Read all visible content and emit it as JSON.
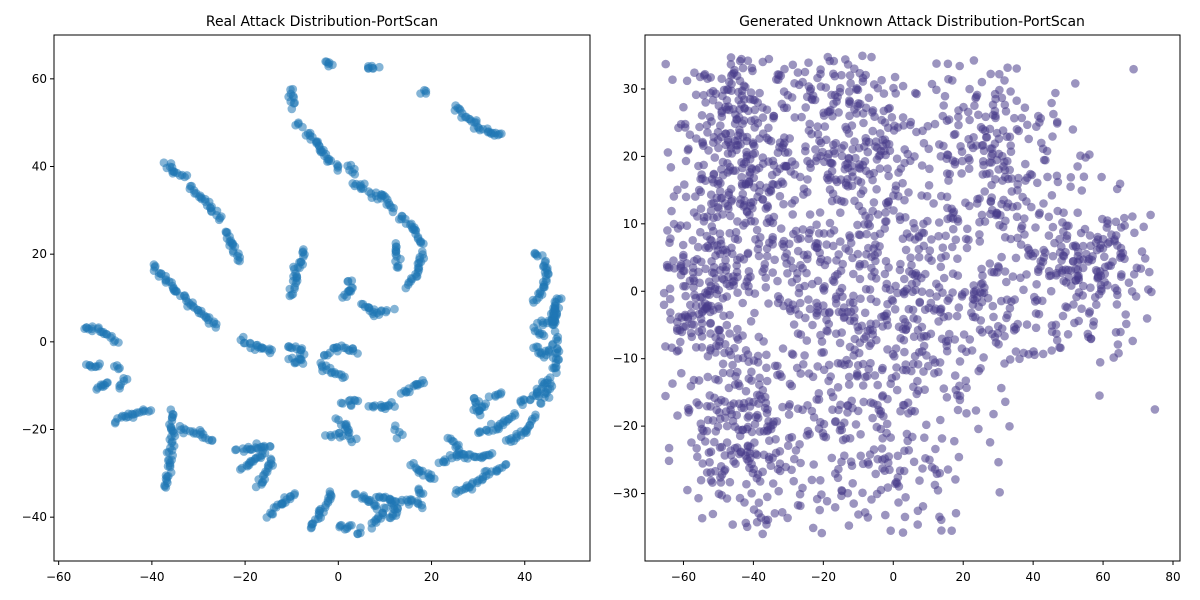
{
  "chart_data": [
    {
      "type": "scatter",
      "title": "Real Attack Distribution-PortScan",
      "xlabel": "",
      "ylabel": "",
      "xlim": [
        -61,
        54
      ],
      "ylim": [
        -50,
        70
      ],
      "xticks": [
        -60,
        -40,
        -20,
        0,
        20,
        40
      ],
      "yticks": [
        -40,
        -20,
        0,
        20,
        40,
        60
      ],
      "color": "#1f77b4",
      "alpha": 0.55,
      "point_style": "filled circle",
      "grid": false,
      "strokes": [
        [
          [
            -55,
            3.5
          ],
          [
            -51,
            2.5
          ],
          [
            -47.5,
            0
          ]
        ],
        [
          [
            -54,
            -5.5
          ],
          [
            -51,
            -5.5
          ]
        ],
        [
          [
            -52,
            -11
          ],
          [
            -49,
            -9
          ]
        ],
        [
          [
            -48,
            -18
          ],
          [
            -45,
            -17
          ],
          [
            -40,
            -15.5
          ]
        ],
        [
          [
            -48,
            -5.5
          ],
          [
            -47,
            -6
          ]
        ],
        [
          [
            -47,
            -10
          ],
          [
            -45.5,
            -8.5
          ]
        ],
        [
          [
            -40,
            17.5
          ],
          [
            -36,
            13
          ],
          [
            -30,
            7
          ],
          [
            -26,
            3.5
          ]
        ],
        [
          [
            -37,
            41
          ],
          [
            -35,
            38.5
          ],
          [
            -33,
            37.5
          ]
        ],
        [
          [
            -32,
            35.5
          ],
          [
            -28,
            31.5
          ],
          [
            -25,
            28
          ]
        ],
        [
          [
            -24,
            25.5
          ],
          [
            -23,
            22
          ],
          [
            -21,
            18.5
          ]
        ],
        [
          [
            -37,
            -33.5
          ],
          [
            -36,
            -27
          ],
          [
            -35.5,
            -20.5
          ],
          [
            -36,
            -16
          ]
        ],
        [
          [
            -34,
            -19.5
          ],
          [
            -30,
            -21
          ],
          [
            -27,
            -22.5
          ]
        ],
        [
          [
            -21,
            0.5
          ],
          [
            -17,
            -1.5
          ],
          [
            -14,
            -2
          ]
        ],
        [
          [
            -22,
            -25
          ],
          [
            -18,
            -24
          ],
          [
            -14.5,
            -24
          ]
        ],
        [
          [
            -21,
            -29
          ],
          [
            -17,
            -26.5
          ],
          [
            -15.5,
            -25
          ]
        ],
        [
          [
            -17,
            -33
          ],
          [
            -15,
            -29
          ],
          [
            -14.5,
            -27
          ]
        ],
        [
          [
            -15,
            -39.5
          ],
          [
            -12,
            -36.5
          ],
          [
            -9,
            -34.5
          ]
        ],
        [
          [
            -11,
            -1
          ],
          [
            -8,
            -2
          ],
          [
            -7.5,
            -5
          ]
        ],
        [
          [
            -10,
            -3.5
          ],
          [
            -9,
            -5
          ]
        ],
        [
          [
            -10,
            10.5
          ],
          [
            -9.5,
            15
          ],
          [
            -9,
            17
          ]
        ],
        [
          [
            -8,
            17
          ],
          [
            -7.5,
            21
          ]
        ],
        [
          [
            -10,
            53.5
          ],
          [
            -10,
            57.5
          ]
        ],
        [
          [
            -9,
            49.5
          ],
          [
            -8,
            50
          ]
        ],
        [
          [
            -7,
            47.5
          ],
          [
            -5,
            46
          ],
          [
            -4,
            44
          ],
          [
            -2,
            41.5
          ],
          [
            0,
            39.5
          ]
        ],
        [
          [
            2,
            40
          ],
          [
            3.5,
            38.5
          ]
        ],
        [
          [
            -3,
            64
          ],
          [
            -1,
            63.5
          ]
        ],
        [
          [
            6,
            62.5
          ],
          [
            8.5,
            62.5
          ]
        ],
        [
          [
            3,
            35.5
          ],
          [
            5,
            35.5
          ],
          [
            6,
            36
          ]
        ],
        [
          [
            6,
            33.5
          ],
          [
            10,
            33
          ],
          [
            12,
            30
          ]
        ],
        [
          [
            13,
            28.5
          ],
          [
            16,
            26.5
          ],
          [
            18,
            22
          ]
        ],
        [
          [
            18,
            20.5
          ],
          [
            17,
            15.5
          ],
          [
            15,
            12.5
          ]
        ],
        [
          [
            12,
            22.5
          ],
          [
            13,
            17
          ]
        ],
        [
          [
            1,
            10
          ],
          [
            3,
            12
          ],
          [
            2.5,
            14
          ]
        ],
        [
          [
            5,
            9
          ],
          [
            8,
            6.5
          ],
          [
            11,
            7
          ]
        ],
        [
          [
            4,
            -2
          ],
          [
            0,
            -1.5
          ],
          [
            -3,
            -3
          ]
        ],
        [
          [
            -4,
            -5
          ],
          [
            -2,
            -6.5
          ],
          [
            1,
            -8
          ]
        ],
        [
          [
            1,
            -14
          ],
          [
            3,
            -14
          ],
          [
            4,
            -13.5
          ]
        ],
        [
          [
            0,
            -17.5
          ],
          [
            2,
            -20
          ],
          [
            3,
            -22.5
          ]
        ],
        [
          [
            -2,
            -21
          ],
          [
            1,
            -21.5
          ]
        ],
        [
          [
            7,
            -14.5
          ],
          [
            10,
            -15
          ],
          [
            12,
            -14
          ]
        ],
        [
          [
            12,
            -19.5
          ],
          [
            13,
            -21
          ]
        ],
        [
          [
            14,
            -12
          ],
          [
            17,
            -9.5
          ],
          [
            18,
            -9
          ]
        ],
        [
          [
            16,
            -28
          ],
          [
            18,
            -30
          ],
          [
            21,
            -31
          ]
        ],
        [
          [
            17,
            -33.5
          ],
          [
            18,
            -35
          ]
        ],
        [
          [
            12,
            -36.5
          ],
          [
            15,
            -36.5
          ],
          [
            18,
            -37.5
          ]
        ],
        [
          [
            8,
            -35.5
          ],
          [
            11,
            -36
          ],
          [
            12,
            -38
          ]
        ],
        [
          [
            4,
            -35
          ],
          [
            6.5,
            -36
          ],
          [
            8,
            -38
          ]
        ],
        [
          [
            7,
            -42
          ],
          [
            9,
            -40
          ],
          [
            10,
            -38
          ]
        ],
        [
          [
            11,
            -40.5
          ],
          [
            13,
            -38
          ]
        ],
        [
          [
            0,
            -42
          ],
          [
            3,
            -42.5
          ]
        ],
        [
          [
            5,
            -43
          ],
          [
            4,
            -44
          ]
        ],
        [
          [
            -6,
            -42.5
          ],
          [
            -4,
            -39
          ],
          [
            -1,
            -34
          ]
        ],
        [
          [
            18,
            56.5
          ],
          [
            19,
            57.5
          ]
        ],
        [
          [
            25,
            53.5
          ],
          [
            29,
            50
          ],
          [
            32,
            47.5
          ],
          [
            35,
            47
          ]
        ],
        [
          [
            24,
            -22
          ],
          [
            26,
            -25
          ]
        ],
        [
          [
            22,
            -27.5
          ],
          [
            26,
            -25.5
          ]
        ],
        [
          [
            26,
            -26
          ],
          [
            30,
            -26.5
          ],
          [
            33,
            -25.5
          ]
        ],
        [
          [
            25,
            -34
          ],
          [
            28,
            -33
          ],
          [
            32,
            -30
          ],
          [
            36,
            -28.5
          ]
        ],
        [
          [
            29,
            -12.5
          ],
          [
            30,
            -16
          ]
        ],
        [
          [
            30,
            -16
          ],
          [
            32,
            -14.5
          ]
        ],
        [
          [
            33,
            -12.5
          ],
          [
            35,
            -11.5
          ]
        ],
        [
          [
            30,
            -20.5
          ],
          [
            34,
            -19.5
          ],
          [
            38,
            -16.5
          ]
        ],
        [
          [
            39,
            -14
          ],
          [
            43,
            -12
          ],
          [
            45,
            -8
          ]
        ],
        [
          [
            36,
            -23
          ],
          [
            40,
            -20.5
          ],
          [
            42,
            -17
          ]
        ],
        [
          [
            44,
            -14
          ],
          [
            45.5,
            -9.5
          ]
        ],
        [
          [
            46,
            -7
          ],
          [
            47,
            -4
          ],
          [
            47,
            1
          ]
        ],
        [
          [
            46,
            3
          ],
          [
            46.5,
            6
          ],
          [
            46,
            9
          ]
        ],
        [
          [
            46,
            4
          ],
          [
            47.5,
            10
          ]
        ],
        [
          [
            43,
            4
          ],
          [
            46,
            5
          ]
        ],
        [
          [
            42,
            3
          ],
          [
            44,
            1
          ]
        ],
        [
          [
            42,
            9
          ],
          [
            44,
            12.5
          ],
          [
            45,
            16
          ],
          [
            44,
            19
          ]
        ],
        [
          [
            43,
            20
          ],
          [
            42,
            20.5
          ]
        ],
        [
          [
            42,
            -1
          ],
          [
            44,
            -3
          ],
          [
            46,
            -2
          ]
        ]
      ]
    },
    {
      "type": "scatter",
      "title": "Generated Unknown Attack Distribution-PortScan",
      "xlabel": "",
      "ylabel": "",
      "xlim": [
        -71,
        82
      ],
      "ylim": [
        -40,
        38
      ],
      "xticks": [
        -60,
        -40,
        -20,
        0,
        20,
        40,
        60,
        80
      ],
      "yticks": [
        -30,
        -20,
        -10,
        0,
        10,
        20,
        30
      ],
      "color": "#483d8b",
      "alpha": 0.55,
      "point_style": "filled circle",
      "grid": false,
      "point_count": 2100
    }
  ]
}
